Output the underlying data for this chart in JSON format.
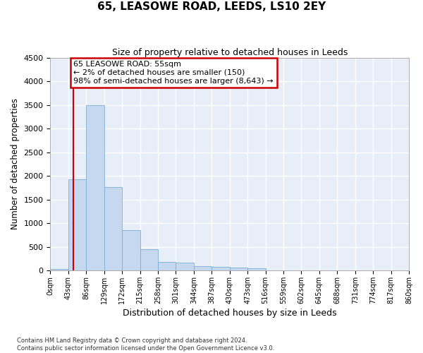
{
  "title": "65, LEASOWE ROAD, LEEDS, LS10 2EY",
  "subtitle": "Size of property relative to detached houses in Leeds",
  "xlabel": "Distribution of detached houses by size in Leeds",
  "ylabel": "Number of detached properties",
  "bar_color": "#c5d8f0",
  "bar_edge_color": "#7aafd4",
  "background_color": "#e8eef8",
  "grid_color": "#ffffff",
  "annotation_box_edge_color": "#cc0000",
  "property_line_color": "#cc0000",
  "bin_labels": [
    "0sqm",
    "43sqm",
    "86sqm",
    "129sqm",
    "172sqm",
    "215sqm",
    "258sqm",
    "301sqm",
    "344sqm",
    "387sqm",
    "430sqm",
    "473sqm",
    "516sqm",
    "559sqm",
    "602sqm",
    "645sqm",
    "688sqm",
    "731sqm",
    "774sqm",
    "817sqm",
    "860sqm"
  ],
  "bar_values": [
    30,
    1920,
    3490,
    1760,
    850,
    450,
    175,
    160,
    90,
    68,
    55,
    38,
    0,
    0,
    0,
    0,
    0,
    0,
    0,
    0
  ],
  "property_line_x": 1.28,
  "annotation_title": "65 LEASOWE ROAD: 55sqm",
  "annotation_line1": "← 2% of detached houses are smaller (150)",
  "annotation_line2": "98% of semi-detached houses are larger (8,643) →",
  "ylim_max": 4500,
  "yticks": [
    0,
    500,
    1000,
    1500,
    2000,
    2500,
    3000,
    3500,
    4000,
    4500
  ],
  "footer_line1": "Contains HM Land Registry data © Crown copyright and database right 2024.",
  "footer_line2": "Contains public sector information licensed under the Open Government Licence v3.0."
}
